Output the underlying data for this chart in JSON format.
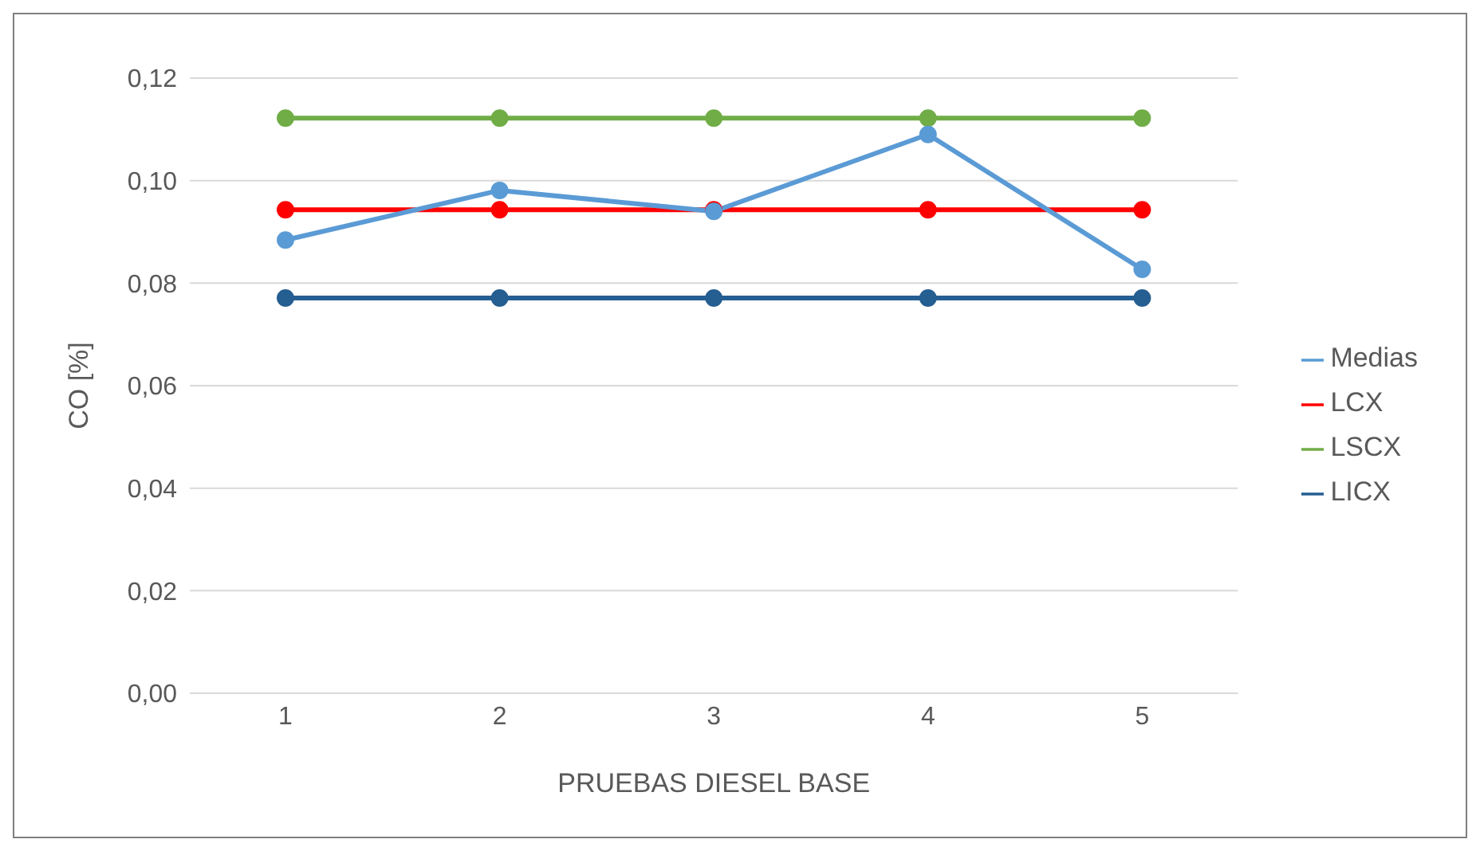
{
  "chart_data": {
    "type": "line",
    "xlabel": "PRUEBAS DIESEL BASE",
    "ylabel": "CO [%]",
    "categories": [
      "1",
      "2",
      "3",
      "4",
      "5"
    ],
    "series": [
      {
        "name": "Medias",
        "color": "#5b9bd5",
        "values": [
          0.0884,
          0.0981,
          0.094,
          0.109,
          0.0827
        ]
      },
      {
        "name": "LCX",
        "color": "#ff0000",
        "values": [
          0.0943,
          0.0943,
          0.0943,
          0.0943,
          0.0943
        ]
      },
      {
        "name": "LSCX",
        "color": "#70ad47",
        "values": [
          0.1122,
          0.1122,
          0.1122,
          0.1122,
          0.1122
        ]
      },
      {
        "name": "LICX",
        "color": "#255e91",
        "values": [
          0.0771,
          0.0771,
          0.0771,
          0.0771,
          0.0771
        ]
      }
    ],
    "ylim": [
      0,
      0.12
    ],
    "yticks": [
      {
        "value": 0,
        "label": "0,00"
      },
      {
        "value": 0.02,
        "label": "0,02"
      },
      {
        "value": 0.04,
        "label": "0,04"
      },
      {
        "value": 0.06,
        "label": "0,06"
      },
      {
        "value": 0.08,
        "label": "0,08"
      },
      {
        "value": 0.1,
        "label": "0,10"
      },
      {
        "value": 0.12,
        "label": "0,12"
      }
    ],
    "grid": "y",
    "legend": "right",
    "marker": "circle",
    "line_style": "solid"
  }
}
